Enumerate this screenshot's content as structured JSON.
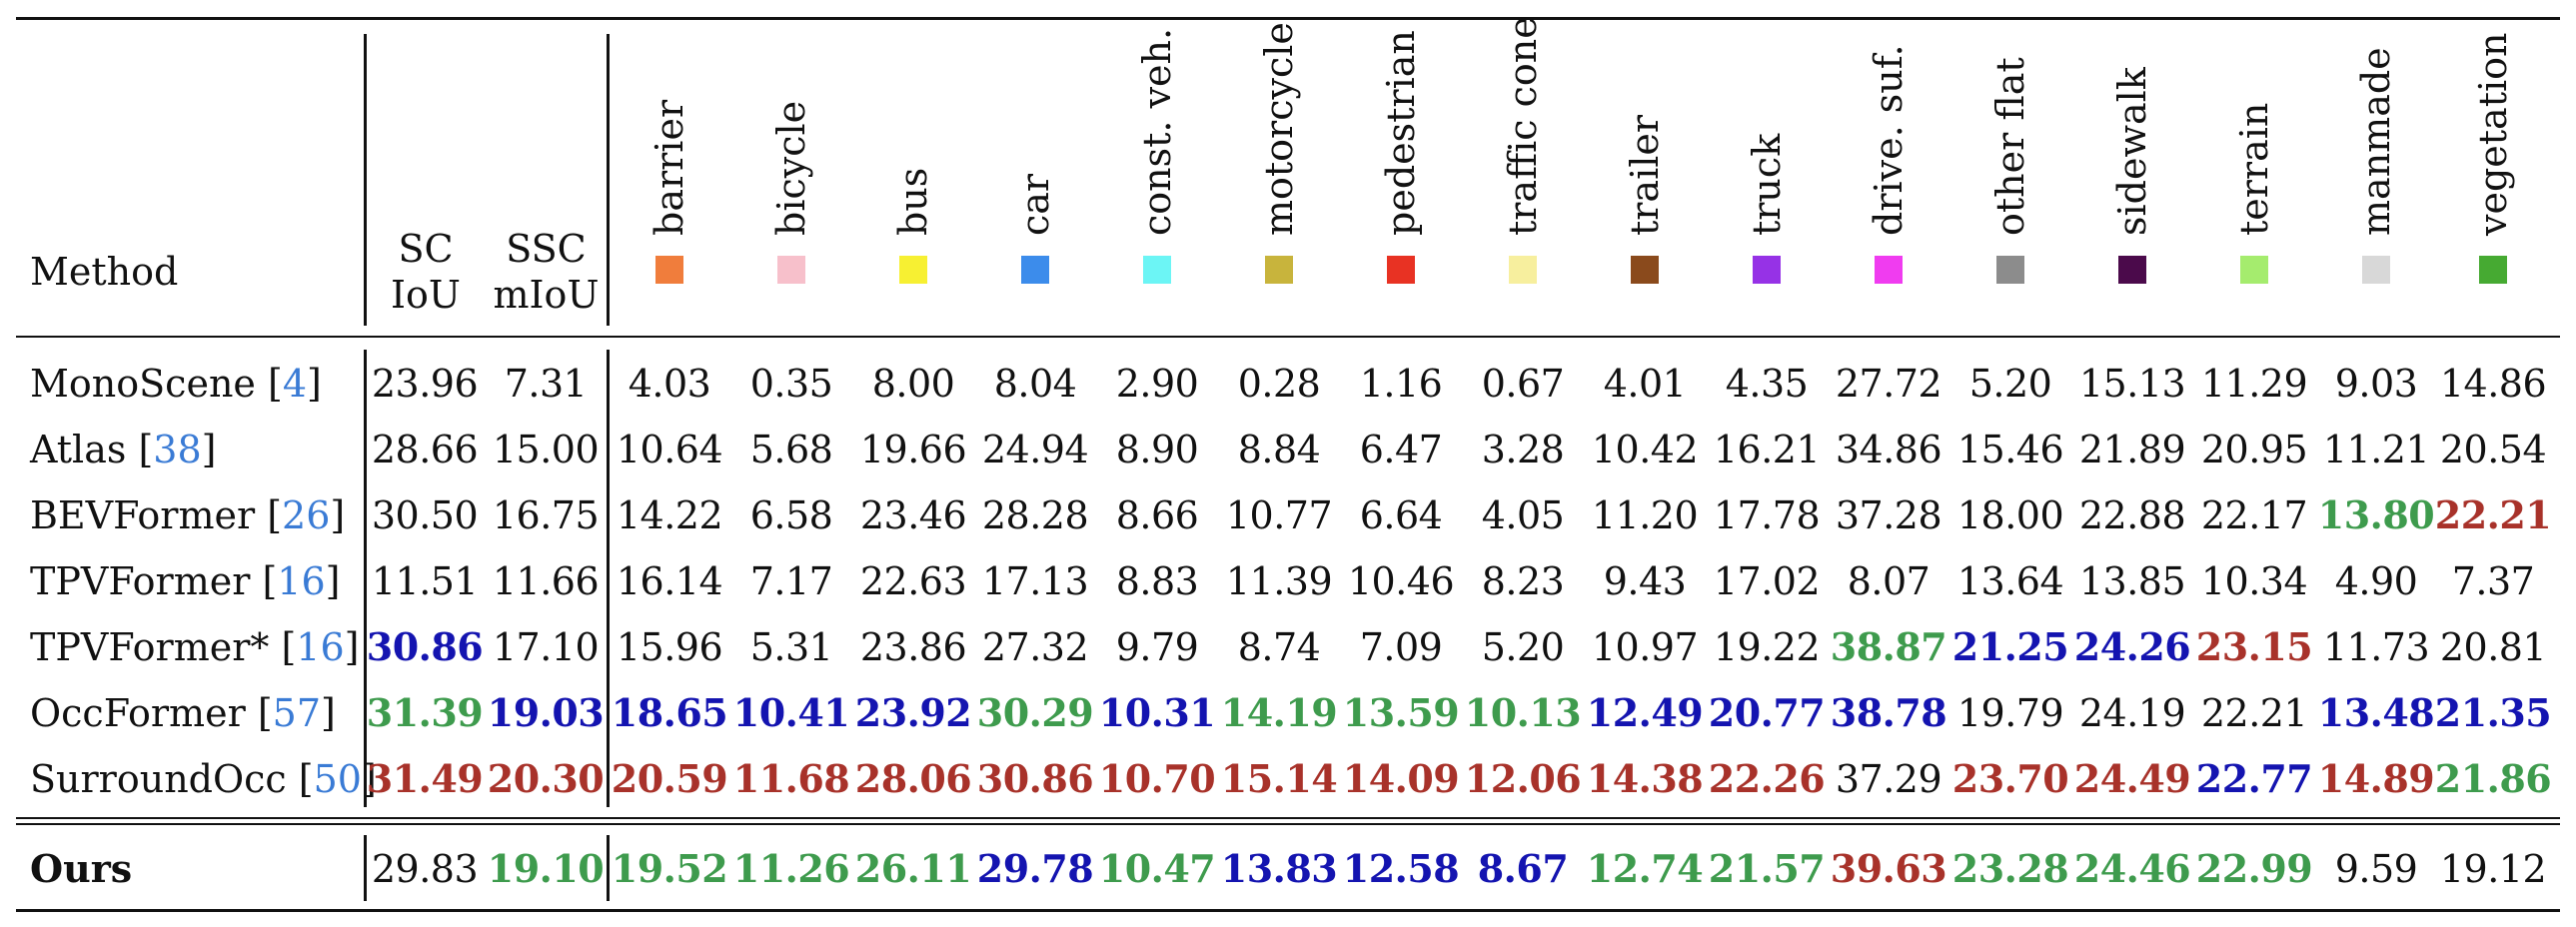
{
  "header": {
    "method": "Method",
    "sc": [
      "SC",
      "IoU"
    ],
    "ssc": [
      "SSC",
      "mIoU"
    ]
  },
  "classes": [
    {
      "name": "barrier",
      "color": "#f07d3c"
    },
    {
      "name": "bicycle",
      "color": "#f7c0cb"
    },
    {
      "name": "bus",
      "color": "#f7f032"
    },
    {
      "name": "car",
      "color": "#3c8ceb"
    },
    {
      "name": "const. veh.",
      "color": "#6cf5f5"
    },
    {
      "name": "motorcycle",
      "color": "#c8b43c"
    },
    {
      "name": "pedestrian",
      "color": "#e83223"
    },
    {
      "name": "traffic cone",
      "color": "#f7ef9e"
    },
    {
      "name": "trailer",
      "color": "#8a4a1c"
    },
    {
      "name": "truck",
      "color": "#9632e6"
    },
    {
      "name": "drive. suf.",
      "color": "#f03cf0"
    },
    {
      "name": "other flat",
      "color": "#8c8c8c"
    },
    {
      "name": "sidewalk",
      "color": "#4b0a4b"
    },
    {
      "name": "terrain",
      "color": "#a5ec6e"
    },
    {
      "name": "manmade",
      "color": "#d8d8d8"
    },
    {
      "name": "vegetation",
      "color": "#46aa32"
    }
  ],
  "rows": [
    {
      "method": "MonoScene",
      "cite": "4",
      "cells": [
        [
          "23.96",
          ""
        ],
        [
          "7.31",
          ""
        ],
        [
          "4.03",
          ""
        ],
        [
          "0.35",
          ""
        ],
        [
          "8.00",
          ""
        ],
        [
          "8.04",
          ""
        ],
        [
          "2.90",
          ""
        ],
        [
          "0.28",
          ""
        ],
        [
          "1.16",
          ""
        ],
        [
          "0.67",
          ""
        ],
        [
          "4.01",
          ""
        ],
        [
          "4.35",
          ""
        ],
        [
          "27.72",
          ""
        ],
        [
          "5.20",
          ""
        ],
        [
          "15.13",
          ""
        ],
        [
          "11.29",
          ""
        ],
        [
          "9.03",
          ""
        ],
        [
          "14.86",
          ""
        ]
      ]
    },
    {
      "method": "Atlas",
      "cite": "38",
      "cells": [
        [
          "28.66",
          ""
        ],
        [
          "15.00",
          ""
        ],
        [
          "10.64",
          ""
        ],
        [
          "5.68",
          ""
        ],
        [
          "19.66",
          ""
        ],
        [
          "24.94",
          ""
        ],
        [
          "8.90",
          ""
        ],
        [
          "8.84",
          ""
        ],
        [
          "6.47",
          ""
        ],
        [
          "3.28",
          ""
        ],
        [
          "10.42",
          ""
        ],
        [
          "16.21",
          ""
        ],
        [
          "34.86",
          ""
        ],
        [
          "15.46",
          ""
        ],
        [
          "21.89",
          ""
        ],
        [
          "20.95",
          ""
        ],
        [
          "11.21",
          ""
        ],
        [
          "20.54",
          ""
        ]
      ]
    },
    {
      "method": "BEVFormer",
      "cite": "26",
      "cells": [
        [
          "30.50",
          ""
        ],
        [
          "16.75",
          ""
        ],
        [
          "14.22",
          ""
        ],
        [
          "6.58",
          ""
        ],
        [
          "23.46",
          ""
        ],
        [
          "28.28",
          ""
        ],
        [
          "8.66",
          ""
        ],
        [
          "10.77",
          ""
        ],
        [
          "6.64",
          ""
        ],
        [
          "4.05",
          ""
        ],
        [
          "11.20",
          ""
        ],
        [
          "17.78",
          ""
        ],
        [
          "37.28",
          ""
        ],
        [
          "18.00",
          ""
        ],
        [
          "22.88",
          ""
        ],
        [
          "22.17",
          ""
        ],
        [
          "13.80",
          "green"
        ],
        [
          "22.21",
          "red"
        ]
      ]
    },
    {
      "method": "TPVFormer",
      "cite": "16",
      "cells": [
        [
          "11.51",
          ""
        ],
        [
          "11.66",
          ""
        ],
        [
          "16.14",
          ""
        ],
        [
          "7.17",
          ""
        ],
        [
          "22.63",
          ""
        ],
        [
          "17.13",
          ""
        ],
        [
          "8.83",
          ""
        ],
        [
          "11.39",
          ""
        ],
        [
          "10.46",
          ""
        ],
        [
          "8.23",
          ""
        ],
        [
          "9.43",
          ""
        ],
        [
          "17.02",
          ""
        ],
        [
          "8.07",
          ""
        ],
        [
          "13.64",
          ""
        ],
        [
          "13.85",
          ""
        ],
        [
          "10.34",
          ""
        ],
        [
          "4.90",
          ""
        ],
        [
          "7.37",
          ""
        ]
      ]
    },
    {
      "method": "TPVFormer*",
      "cite": "16",
      "cells": [
        [
          "30.86",
          "blue"
        ],
        [
          "17.10",
          ""
        ],
        [
          "15.96",
          ""
        ],
        [
          "5.31",
          ""
        ],
        [
          "23.86",
          ""
        ],
        [
          "27.32",
          ""
        ],
        [
          "9.79",
          ""
        ],
        [
          "8.74",
          ""
        ],
        [
          "7.09",
          ""
        ],
        [
          "5.20",
          ""
        ],
        [
          "10.97",
          ""
        ],
        [
          "19.22",
          ""
        ],
        [
          "38.87",
          "green"
        ],
        [
          "21.25",
          "blue"
        ],
        [
          "24.26",
          "blue"
        ],
        [
          "23.15",
          "red"
        ],
        [
          "11.73",
          ""
        ],
        [
          "20.81",
          ""
        ]
      ]
    },
    {
      "method": "OccFormer",
      "cite": "57",
      "cells": [
        [
          "31.39",
          "green"
        ],
        [
          "19.03",
          "blue"
        ],
        [
          "18.65",
          "blue"
        ],
        [
          "10.41",
          "blue"
        ],
        [
          "23.92",
          "blue"
        ],
        [
          "30.29",
          "green"
        ],
        [
          "10.31",
          "blue"
        ],
        [
          "14.19",
          "green"
        ],
        [
          "13.59",
          "green"
        ],
        [
          "10.13",
          "green"
        ],
        [
          "12.49",
          "blue"
        ],
        [
          "20.77",
          "blue"
        ],
        [
          "38.78",
          "blue"
        ],
        [
          "19.79",
          ""
        ],
        [
          "24.19",
          ""
        ],
        [
          "22.21",
          ""
        ],
        [
          "13.48",
          "blue"
        ],
        [
          "21.35",
          "blue"
        ]
      ]
    },
    {
      "method": "SurroundOcc",
      "cite": "50",
      "cells": [
        [
          "31.49",
          "red"
        ],
        [
          "20.30",
          "red"
        ],
        [
          "20.59",
          "red"
        ],
        [
          "11.68",
          "red"
        ],
        [
          "28.06",
          "red"
        ],
        [
          "30.86",
          "red"
        ],
        [
          "10.70",
          "red"
        ],
        [
          "15.14",
          "red"
        ],
        [
          "14.09",
          "red"
        ],
        [
          "12.06",
          "red"
        ],
        [
          "14.38",
          "red"
        ],
        [
          "22.26",
          "red"
        ],
        [
          "37.29",
          ""
        ],
        [
          "23.70",
          "red"
        ],
        [
          "24.49",
          "red"
        ],
        [
          "22.77",
          "blue"
        ],
        [
          "14.89",
          "red"
        ],
        [
          "21.86",
          "green"
        ]
      ]
    }
  ],
  "ours": {
    "method": "Ours",
    "cells": [
      [
        "29.83",
        ""
      ],
      [
        "19.10",
        "green"
      ],
      [
        "19.52",
        "green"
      ],
      [
        "11.26",
        "green"
      ],
      [
        "26.11",
        "green"
      ],
      [
        "29.78",
        "blue"
      ],
      [
        "10.47",
        "green"
      ],
      [
        "13.83",
        "blue"
      ],
      [
        "12.58",
        "blue"
      ],
      [
        "8.67",
        "blue"
      ],
      [
        "12.74",
        "green"
      ],
      [
        "21.57",
        "green"
      ],
      [
        "39.63",
        "red"
      ],
      [
        "23.28",
        "green"
      ],
      [
        "24.46",
        "green"
      ],
      [
        "22.99",
        "green"
      ],
      [
        "9.59",
        ""
      ],
      [
        "19.12",
        ""
      ]
    ]
  }
}
